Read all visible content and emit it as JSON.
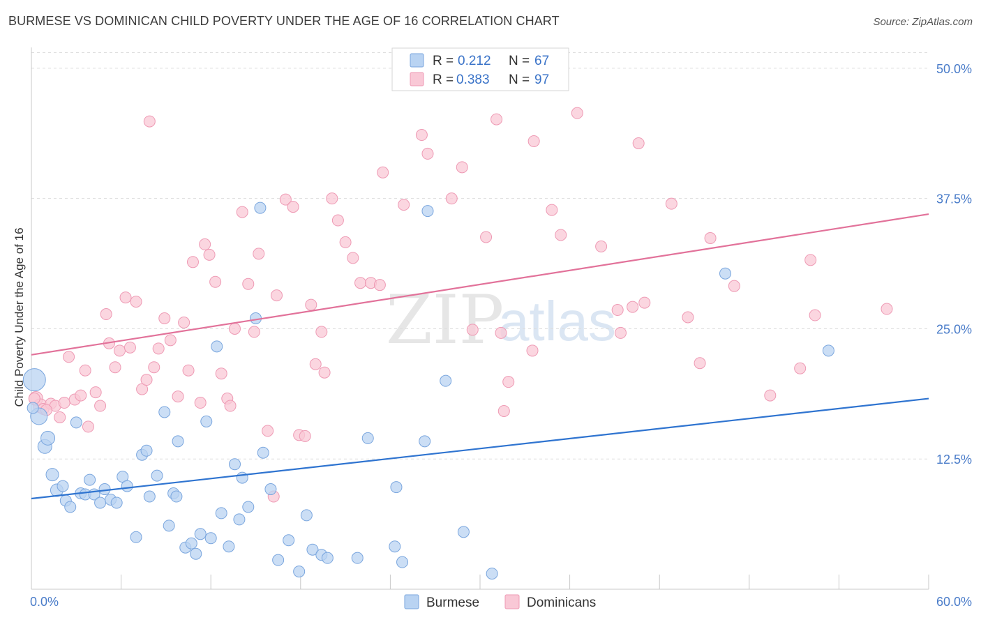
{
  "title": "BURMESE VS DOMINICAN CHILD POVERTY UNDER THE AGE OF 16 CORRELATION CHART",
  "source": "Source: ZipAtlas.com",
  "watermark": {
    "zip": "ZIP",
    "atlas": "atlas"
  },
  "colors": {
    "burmese_fill": "#b9d3f2",
    "burmese_stroke": "#7aa6de",
    "burmese_line": "#2f74d0",
    "dominican_fill": "#f9c8d6",
    "dominican_stroke": "#ee9ab4",
    "dominican_line": "#e2729a",
    "tick": "#4a7cc9",
    "grid": "#dddddd"
  },
  "legend": {
    "items": [
      {
        "r_label": "R =",
        "r_value": "0.212",
        "n_label": "N =",
        "n_value": "67"
      },
      {
        "r_label": "R =",
        "r_value": "0.383",
        "n_label": "N =",
        "n_value": "97"
      }
    ]
  },
  "chart_data": {
    "type": "scatter",
    "title": "BURMESE VS DOMINICAN CHILD POVERTY UNDER THE AGE OF 16 CORRELATION CHART",
    "xlabel": "",
    "ylabel": "Child Poverty Under the Age of 16",
    "xlim": [
      0,
      60
    ],
    "ylim": [
      0,
      52
    ],
    "x_tick_labels": [
      "0.0%",
      "60.0%"
    ],
    "y_ticks": [
      12.5,
      25.0,
      37.5,
      50.0
    ],
    "y_tick_labels": [
      "12.5%",
      "25.0%",
      "37.5%",
      "50.0%"
    ],
    "grid": "horizontal dashed",
    "legend_position": "top-center",
    "series": [
      {
        "name": "Burmese",
        "trend": {
          "x": [
            0,
            60
          ],
          "y": [
            8.7,
            18.3
          ]
        },
        "points": [
          [
            0.2,
            20.1,
            16
          ],
          [
            0.5,
            16.6,
            12
          ],
          [
            0.9,
            13.7,
            10
          ],
          [
            1.1,
            14.5,
            10
          ],
          [
            1.4,
            11.0,
            9
          ],
          [
            1.7,
            9.5,
            9
          ],
          [
            2.1,
            9.9,
            8
          ],
          [
            2.3,
            8.5,
            8
          ],
          [
            2.6,
            7.9,
            8
          ],
          [
            3.0,
            16.0,
            8
          ],
          [
            3.3,
            9.2,
            8
          ],
          [
            3.6,
            9.1,
            8
          ],
          [
            3.9,
            10.5,
            8
          ],
          [
            4.2,
            9.1,
            8
          ],
          [
            4.6,
            8.3,
            8
          ],
          [
            4.9,
            9.6,
            8
          ],
          [
            5.3,
            8.6,
            8
          ],
          [
            5.7,
            8.3,
            8
          ],
          [
            6.1,
            10.8,
            8
          ],
          [
            6.4,
            9.9,
            8
          ],
          [
            7.0,
            5.0,
            8
          ],
          [
            7.4,
            12.9,
            8
          ],
          [
            7.7,
            13.3,
            8
          ],
          [
            7.9,
            8.9,
            8
          ],
          [
            8.4,
            10.9,
            8
          ],
          [
            8.9,
            17.0,
            8
          ],
          [
            9.2,
            6.1,
            8
          ],
          [
            9.5,
            9.2,
            8
          ],
          [
            9.7,
            8.9,
            8
          ],
          [
            9.8,
            14.2,
            8
          ],
          [
            10.3,
            4.0,
            8
          ],
          [
            10.7,
            4.4,
            8
          ],
          [
            11.0,
            3.4,
            8
          ],
          [
            11.3,
            5.3,
            8
          ],
          [
            11.7,
            16.1,
            8
          ],
          [
            12.0,
            4.9,
            8
          ],
          [
            12.4,
            23.3,
            8
          ],
          [
            12.7,
            7.3,
            8
          ],
          [
            13.2,
            4.1,
            8
          ],
          [
            13.6,
            12.0,
            8
          ],
          [
            13.9,
            6.7,
            8
          ],
          [
            14.1,
            10.7,
            8
          ],
          [
            14.5,
            7.9,
            8
          ],
          [
            15.0,
            26.0,
            8
          ],
          [
            15.3,
            36.6,
            8
          ],
          [
            15.5,
            13.1,
            8
          ],
          [
            16.0,
            9.6,
            8
          ],
          [
            16.5,
            2.8,
            8
          ],
          [
            17.2,
            4.7,
            8
          ],
          [
            17.9,
            1.7,
            8
          ],
          [
            18.4,
            7.1,
            8
          ],
          [
            18.8,
            3.8,
            8
          ],
          [
            19.4,
            3.3,
            8
          ],
          [
            19.8,
            3.0,
            8
          ],
          [
            21.8,
            3.0,
            8
          ],
          [
            22.5,
            14.5,
            8
          ],
          [
            24.3,
            4.1,
            8
          ],
          [
            24.4,
            9.8,
            8
          ],
          [
            24.8,
            2.6,
            8
          ],
          [
            26.3,
            14.2,
            8
          ],
          [
            26.5,
            36.3,
            8
          ],
          [
            27.7,
            20.0,
            8
          ],
          [
            28.9,
            5.5,
            8
          ],
          [
            30.8,
            1.5,
            8
          ],
          [
            46.4,
            30.3,
            8
          ],
          [
            53.3,
            22.9,
            8
          ],
          [
            0.1,
            17.4,
            8
          ]
        ]
      },
      {
        "name": "Dominicans",
        "trend": {
          "x": [
            0,
            60
          ],
          "y": [
            22.5,
            36.0
          ]
        },
        "points": [
          [
            0.3,
            18.3,
            10
          ],
          [
            0.6,
            17.6,
            10
          ],
          [
            0.8,
            17.3,
            8
          ],
          [
            1.3,
            17.8,
            8
          ],
          [
            1.6,
            17.6,
            8
          ],
          [
            1.9,
            16.5,
            8
          ],
          [
            2.2,
            17.9,
            8
          ],
          [
            2.5,
            22.3,
            8
          ],
          [
            2.9,
            18.2,
            8
          ],
          [
            3.3,
            18.6,
            8
          ],
          [
            3.6,
            21.0,
            8
          ],
          [
            3.8,
            15.6,
            8
          ],
          [
            4.3,
            18.9,
            8
          ],
          [
            4.6,
            17.6,
            8
          ],
          [
            5.0,
            26.4,
            8
          ],
          [
            5.2,
            23.6,
            8
          ],
          [
            5.6,
            21.3,
            8
          ],
          [
            5.9,
            22.9,
            8
          ],
          [
            6.3,
            28.0,
            8
          ],
          [
            6.6,
            23.2,
            8
          ],
          [
            7.0,
            27.6,
            8
          ],
          [
            7.4,
            19.2,
            8
          ],
          [
            7.7,
            20.1,
            8
          ],
          [
            7.9,
            44.9,
            8
          ],
          [
            8.2,
            21.3,
            8
          ],
          [
            8.5,
            23.1,
            8
          ],
          [
            8.9,
            26.0,
            8
          ],
          [
            9.3,
            23.9,
            8
          ],
          [
            9.8,
            18.5,
            8
          ],
          [
            10.2,
            25.6,
            8
          ],
          [
            10.5,
            21.0,
            8
          ],
          [
            10.8,
            31.4,
            8
          ],
          [
            11.3,
            17.9,
            8
          ],
          [
            11.6,
            33.1,
            8
          ],
          [
            11.9,
            32.1,
            8
          ],
          [
            12.3,
            29.5,
            8
          ],
          [
            12.7,
            20.7,
            8
          ],
          [
            13.1,
            18.3,
            8
          ],
          [
            13.3,
            17.6,
            8
          ],
          [
            13.6,
            25.0,
            8
          ],
          [
            14.1,
            36.2,
            8
          ],
          [
            14.5,
            29.3,
            8
          ],
          [
            14.9,
            24.7,
            8
          ],
          [
            15.2,
            32.2,
            8
          ],
          [
            15.8,
            15.2,
            8
          ],
          [
            16.2,
            8.9,
            8
          ],
          [
            16.4,
            28.2,
            8
          ],
          [
            17.0,
            37.4,
            8
          ],
          [
            17.5,
            36.7,
            8
          ],
          [
            17.9,
            14.8,
            8
          ],
          [
            18.3,
            14.7,
            8
          ],
          [
            18.7,
            27.3,
            8
          ],
          [
            19.0,
            21.6,
            8
          ],
          [
            19.4,
            24.7,
            8
          ],
          [
            19.6,
            20.8,
            8
          ],
          [
            20.1,
            37.5,
            8
          ],
          [
            20.5,
            35.4,
            8
          ],
          [
            21.0,
            33.3,
            8
          ],
          [
            21.5,
            31.8,
            8
          ],
          [
            22.0,
            29.4,
            8
          ],
          [
            22.7,
            29.4,
            8
          ],
          [
            23.3,
            29.2,
            8
          ],
          [
            23.5,
            40.0,
            8
          ],
          [
            24.9,
            36.9,
            8
          ],
          [
            26.1,
            43.6,
            8
          ],
          [
            26.5,
            41.8,
            8
          ],
          [
            28.1,
            37.5,
            8
          ],
          [
            28.8,
            40.5,
            8
          ],
          [
            29.5,
            24.9,
            8
          ],
          [
            30.4,
            33.8,
            8
          ],
          [
            31.1,
            45.1,
            8
          ],
          [
            31.4,
            24.6,
            8
          ],
          [
            31.6,
            17.1,
            8
          ],
          [
            31.9,
            19.9,
            8
          ],
          [
            33.5,
            22.9,
            8
          ],
          [
            33.6,
            43.0,
            8
          ],
          [
            34.8,
            36.4,
            8
          ],
          [
            35.4,
            34.0,
            8
          ],
          [
            36.5,
            45.7,
            8
          ],
          [
            38.1,
            32.9,
            8
          ],
          [
            39.2,
            26.8,
            8
          ],
          [
            39.4,
            24.6,
            8
          ],
          [
            40.2,
            27.1,
            8
          ],
          [
            40.6,
            42.8,
            8
          ],
          [
            41.0,
            27.5,
            8
          ],
          [
            42.8,
            37.0,
            8
          ],
          [
            43.9,
            26.1,
            8
          ],
          [
            44.7,
            21.7,
            8
          ],
          [
            45.4,
            33.7,
            8
          ],
          [
            47.0,
            29.1,
            8
          ],
          [
            49.4,
            18.6,
            8
          ],
          [
            51.4,
            21.2,
            8
          ],
          [
            52.1,
            31.6,
            8
          ],
          [
            52.4,
            26.3,
            8
          ],
          [
            57.2,
            26.9,
            8
          ],
          [
            0.2,
            18.3,
            8
          ],
          [
            1.0,
            17.2,
            8
          ]
        ]
      }
    ]
  },
  "bottom_legend": {
    "items": [
      {
        "label": "Burmese"
      },
      {
        "label": "Dominicans"
      }
    ]
  }
}
